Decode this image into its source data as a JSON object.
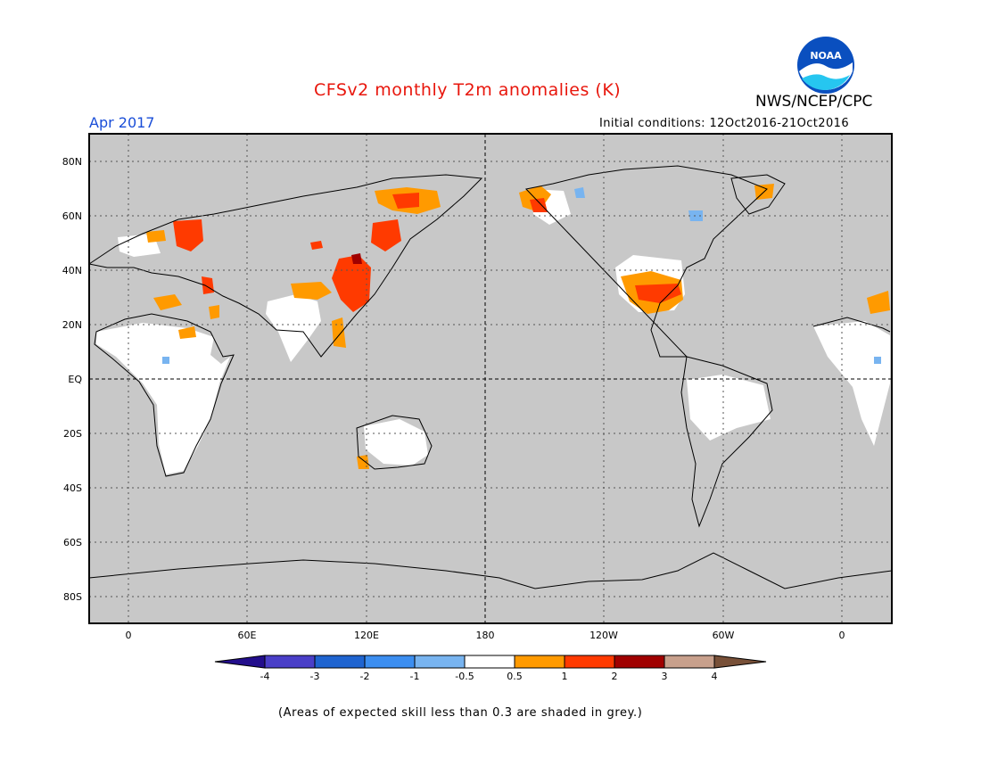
{
  "header": {
    "title": "CFSv2 monthly T2m anomalies (K)",
    "agency": "NWS/NCEP/CPC",
    "logo_text": "NOAA",
    "valid_month": "Apr 2017",
    "initial_conditions": "Initial conditions: 12Oct2016-21Oct2016"
  },
  "map": {
    "lat_labels": [
      "80N",
      "60N",
      "40N",
      "20N",
      "EQ",
      "20S",
      "40S",
      "60S",
      "80S"
    ],
    "lon_labels": [
      "0",
      "60E",
      "120E",
      "180",
      "120W",
      "60W",
      "0"
    ],
    "land_color": "#c8c8c8",
    "no_signal_color": "#ffffff"
  },
  "colorbar": {
    "labels": [
      "-4",
      "-3",
      "-2",
      "-1",
      "-0.5",
      "0.5",
      "1",
      "2",
      "3",
      "4"
    ],
    "colors": [
      "#230e8c",
      "#4a3fc8",
      "#1f64d0",
      "#3c8ef0",
      "#78b4f0",
      "#ffffff",
      "#ff9a00",
      "#ff3a00",
      "#a00000",
      "#c8a08c",
      "#785038"
    ]
  },
  "footnote": "(Areas of expected skill less than 0.3 are shaded in grey.)"
}
